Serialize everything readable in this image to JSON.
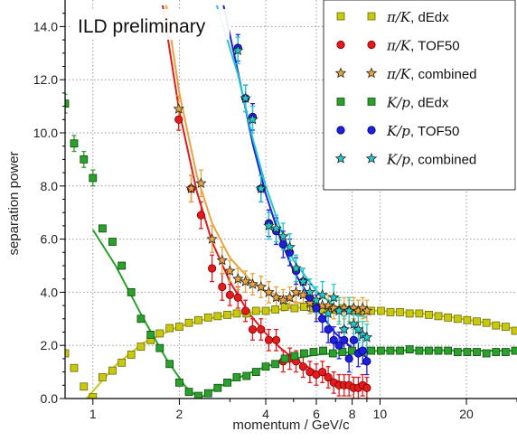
{
  "chart_data": {
    "type": "scatter",
    "title": "",
    "banner": "ILD preliminary",
    "xlabel": "momentum / GeV/c",
    "ylabel": "separation power",
    "xscale": "log",
    "xlim": [
      0.8,
      30
    ],
    "ylim": [
      0,
      15
    ],
    "grid": true,
    "legend_position": "top-right",
    "x_ticks": [
      1,
      2,
      4,
      6,
      8,
      10,
      20
    ],
    "x_tick_labels": [
      "1",
      "2",
      "4",
      "6",
      "8",
      "10",
      "20"
    ],
    "y_ticks": [
      0,
      2,
      4,
      6,
      8,
      10,
      12,
      14
    ],
    "y_tick_labels": [
      "0.0",
      "2.0",
      "4.0",
      "6.0",
      "8.0",
      "10.0",
      "12.0",
      "14.0"
    ],
    "series": [
      {
        "name": "π/K, dEdx",
        "legend_math": "π/K",
        "legend_suffix": ", dEdx",
        "marker": "square",
        "color": "#c8c810",
        "edge": "#6b6b00",
        "x": [
          0.8,
          0.86,
          0.93,
          1.0,
          1.08,
          1.17,
          1.26,
          1.36,
          1.47,
          1.59,
          1.71,
          1.85,
          2.0,
          2.16,
          2.33,
          2.52,
          2.72,
          2.94,
          3.17,
          3.43,
          3.7,
          4.0,
          4.32,
          4.66,
          5.04,
          5.44,
          5.87,
          6.34,
          6.85,
          7.4,
          7.99,
          8.63,
          9.32,
          10.07,
          10.87,
          11.74,
          12.68,
          13.7,
          14.79,
          15.97,
          17.25,
          18.63,
          20.12,
          21.73,
          23.47,
          25.35,
          27.38,
          29.57
        ],
        "y": [
          1.7,
          1.15,
          0.45,
          0.05,
          0.8,
          1.05,
          1.35,
          1.65,
          1.95,
          2.2,
          2.45,
          2.65,
          2.7,
          2.85,
          2.95,
          3.05,
          3.1,
          3.15,
          3.2,
          3.2,
          3.3,
          3.3,
          3.35,
          3.45,
          3.4,
          3.45,
          3.4,
          3.35,
          3.35,
          3.4,
          3.35,
          3.3,
          3.3,
          3.3,
          3.25,
          3.25,
          3.2,
          3.2,
          3.15,
          3.1,
          3.05,
          3.0,
          2.95,
          2.9,
          2.85,
          2.75,
          2.7,
          2.55
        ],
        "fit": [
          [
            0.95,
            0.0
          ],
          [
            1.2,
            1.25
          ],
          [
            1.5,
            2.1
          ],
          [
            2.0,
            2.72
          ],
          [
            2.5,
            3.0
          ],
          [
            3.0,
            3.15
          ],
          [
            4.0,
            3.3
          ],
          [
            5.0,
            3.42
          ],
          [
            6.0,
            3.42
          ],
          [
            8.0,
            3.35
          ],
          [
            10.0,
            3.3
          ],
          [
            14.0,
            3.2
          ],
          [
            18.0,
            3.05
          ],
          [
            22.0,
            2.9
          ],
          [
            26.0,
            2.75
          ],
          [
            30.0,
            2.6
          ]
        ]
      },
      {
        "name": "π/K, TOF50",
        "legend_math": "π/K",
        "legend_suffix": ", TOF50",
        "marker": "circle",
        "color": "#e41a1c",
        "edge": "#7a0000",
        "x": [
          1.99,
          2.2,
          2.38,
          2.6,
          2.82,
          3.0,
          3.2,
          3.4,
          3.6,
          3.85,
          4.1,
          4.35,
          4.6,
          4.85,
          5.1,
          5.4,
          5.7,
          6.0,
          6.3,
          6.6,
          6.9,
          7.2,
          7.5,
          7.8,
          8.1,
          8.4,
          8.7,
          9.0
        ],
        "y": [
          10.5,
          7.9,
          6.9,
          4.9,
          4.2,
          3.9,
          3.8,
          3.3,
          2.6,
          2.6,
          2.2,
          2.2,
          1.4,
          1.5,
          1.4,
          1.2,
          1.0,
          0.9,
          1.0,
          0.8,
          0.6,
          0.5,
          0.5,
          0.5,
          0.4,
          0.4,
          0.5,
          0.4
        ],
        "err": [
          0.4,
          0.5,
          0.5,
          0.5,
          0.5,
          0.4,
          0.4,
          0.4,
          0.4,
          0.4,
          0.4,
          0.4,
          0.4,
          0.4,
          0.4,
          0.4,
          0.4,
          0.4,
          0.4,
          0.4,
          0.4,
          0.4,
          0.4,
          0.4,
          0.4,
          0.4,
          0.4,
          0.4
        ],
        "fit": [
          [
            1.75,
            14.8
          ],
          [
            2.0,
            10.8
          ],
          [
            2.3,
            7.8
          ],
          [
            2.6,
            5.9
          ],
          [
            3.0,
            4.4
          ],
          [
            3.5,
            3.2
          ],
          [
            4.0,
            2.45
          ],
          [
            4.5,
            1.9
          ],
          [
            5.0,
            1.5
          ],
          [
            6.0,
            1.0
          ],
          [
            7.0,
            0.68
          ],
          [
            8.0,
            0.5
          ],
          [
            9.0,
            0.38
          ]
        ]
      },
      {
        "name": "π/K, combined",
        "legend_math": "π/K",
        "legend_suffix": ", combined",
        "marker": "star",
        "color": "#e8a33d",
        "edge": "#222222",
        "x": [
          1.99,
          2.2,
          2.38,
          2.6,
          2.82,
          3.0,
          3.2,
          3.4,
          3.6,
          3.85,
          4.1,
          4.35,
          4.6,
          4.85,
          5.1,
          5.4,
          5.7,
          6.0,
          6.3,
          6.6,
          6.9,
          7.2,
          7.5,
          7.8,
          8.1,
          8.4,
          8.7,
          9.0
        ],
        "y": [
          10.9,
          7.9,
          8.1,
          6.0,
          5.2,
          4.8,
          4.5,
          4.4,
          4.3,
          4.2,
          4.0,
          3.8,
          3.7,
          3.8,
          4.0,
          3.9,
          3.6,
          3.4,
          3.5,
          3.5,
          3.4,
          3.3,
          3.4,
          3.3,
          3.4,
          3.3,
          3.4,
          3.3
        ],
        "err": [
          0.5,
          0.5,
          0.5,
          0.5,
          0.5,
          0.4,
          0.4,
          0.4,
          0.4,
          0.4,
          0.4,
          0.4,
          0.4,
          0.4,
          0.4,
          0.4,
          0.4,
          0.4,
          0.4,
          0.4,
          0.4,
          0.4,
          0.4,
          0.4,
          0.4,
          0.4,
          0.4,
          0.4
        ],
        "fit": [
          [
            1.8,
            14.8
          ],
          [
            2.0,
            11.5
          ],
          [
            2.3,
            8.4
          ],
          [
            2.6,
            6.6
          ],
          [
            3.0,
            5.3
          ],
          [
            3.5,
            4.5
          ],
          [
            4.0,
            4.05
          ],
          [
            5.0,
            3.65
          ],
          [
            6.0,
            3.45
          ],
          [
            7.0,
            3.37
          ],
          [
            8.0,
            3.32
          ],
          [
            9.0,
            3.3
          ]
        ]
      },
      {
        "name": "K/p, dEdx",
        "legend_math": "K/p",
        "legend_suffix": ", dEdx",
        "marker": "square",
        "color": "#2ca02c",
        "edge": "#0b4d0b",
        "x": [
          0.8,
          0.86,
          0.93,
          1.0,
          1.08,
          1.17,
          1.26,
          1.36,
          1.47,
          1.59,
          1.71,
          1.85,
          2.0,
          2.16,
          2.33,
          2.52,
          2.72,
          2.94,
          3.17,
          3.43,
          3.7,
          4.0,
          4.32,
          4.66,
          5.04,
          5.44,
          5.87,
          6.34,
          6.85,
          7.4,
          7.99,
          8.63,
          9.32,
          10.07,
          10.87,
          11.74,
          12.68,
          13.7,
          14.79,
          15.97,
          17.25,
          18.63,
          20.12,
          21.73,
          23.47,
          25.35,
          27.38,
          29.57
        ],
        "y": [
          11.1,
          9.6,
          9.0,
          8.3,
          6.4,
          5.9,
          5.0,
          4.0,
          3.0,
          2.4,
          1.9,
          1.3,
          0.6,
          0.25,
          0.1,
          0.2,
          0.4,
          0.6,
          0.8,
          0.85,
          1.0,
          1.2,
          1.3,
          1.5,
          1.6,
          1.7,
          1.75,
          1.8,
          1.7,
          1.75,
          1.8,
          1.75,
          1.8,
          1.8,
          1.8,
          1.8,
          1.85,
          1.8,
          1.8,
          1.8,
          1.8,
          1.75,
          1.75,
          1.75,
          1.7,
          1.75,
          1.75,
          1.8
        ],
        "err": [
          0.35,
          0.3,
          0.3,
          0.3,
          0,
          0,
          0,
          0,
          0,
          0,
          0,
          0,
          0,
          0,
          0,
          0,
          0,
          0,
          0,
          0,
          0,
          0,
          0,
          0,
          0,
          0,
          0,
          0,
          0,
          0,
          0,
          0,
          0,
          0,
          0,
          0,
          0,
          0,
          0,
          0,
          0,
          0,
          0,
          0,
          0,
          0,
          0,
          0
        ],
        "fit": [
          [
            1.0,
            6.35
          ],
          [
            1.2,
            5.0
          ],
          [
            1.5,
            3.0
          ],
          [
            1.8,
            1.5
          ],
          [
            2.1,
            0.45
          ],
          [
            2.35,
            0.0
          ],
          [
            2.6,
            0.3
          ],
          [
            3.0,
            0.65
          ],
          [
            3.5,
            0.95
          ],
          [
            4.0,
            1.2
          ],
          [
            5.0,
            1.5
          ],
          [
            6.0,
            1.65
          ],
          [
            8.0,
            1.75
          ],
          [
            10.0,
            1.8
          ],
          [
            15.0,
            1.82
          ],
          [
            20.0,
            1.8
          ],
          [
            30.0,
            1.8
          ]
        ]
      },
      {
        "name": "K/p, TOF50",
        "legend_math": "K/p",
        "legend_suffix": ", TOF50",
        "marker": "circle",
        "color": "#1f1fe0",
        "edge": "#00006b",
        "x": [
          3.2,
          3.4,
          3.6,
          3.85,
          4.1,
          4.35,
          4.6,
          4.85,
          5.1,
          5.4,
          5.7,
          6.0,
          6.3,
          6.6,
          6.9,
          7.2,
          7.5,
          7.8,
          8.1,
          8.4,
          8.7,
          9.0
        ],
        "y": [
          13.2,
          11.3,
          10.6,
          7.9,
          6.6,
          6.3,
          5.8,
          5.5,
          4.8,
          4.4,
          3.8,
          3.4,
          3.0,
          2.6,
          2.2,
          2.0,
          2.2,
          1.5,
          2.2,
          1.7,
          1.8,
          1.4
        ],
        "err": [
          0.5,
          0.5,
          0.5,
          0.5,
          0.5,
          0.5,
          0.5,
          0.5,
          0.5,
          0.5,
          0.5,
          0.5,
          0.5,
          0.5,
          0.5,
          0.5,
          0.5,
          0.5,
          0.5,
          0.5,
          0.5,
          0.5
        ],
        "fit": [
          [
            2.85,
            14.8
          ],
          [
            3.2,
            12.3
          ],
          [
            3.6,
            9.6
          ],
          [
            4.0,
            7.7
          ],
          [
            4.5,
            6.0
          ],
          [
            5.0,
            4.8
          ],
          [
            6.0,
            3.4
          ],
          [
            7.0,
            2.45
          ],
          [
            8.0,
            1.9
          ],
          [
            9.0,
            1.55
          ]
        ]
      },
      {
        "name": "K/p, combined",
        "legend_math": "K/p",
        "legend_suffix": ", combined",
        "marker": "star",
        "color": "#22c9c9",
        "edge": "#222222",
        "x": [
          3.2,
          3.4,
          3.6,
          3.85,
          4.1,
          4.35,
          4.6,
          4.85,
          5.1,
          5.4,
          5.7,
          6.0,
          6.3,
          6.6,
          6.9,
          7.2,
          7.5,
          7.8,
          8.1,
          8.4,
          8.7,
          9.0
        ],
        "y": [
          13.1,
          11.3,
          10.5,
          7.9,
          6.5,
          6.4,
          6.1,
          5.7,
          4.9,
          4.4,
          4.0,
          3.7,
          3.9,
          3.2,
          3.8,
          3.3,
          2.6,
          3.3,
          2.8,
          2.6,
          2.4,
          2.3
        ],
        "err": [
          0.5,
          0.5,
          0.5,
          0.5,
          0.5,
          0.5,
          0.5,
          0.5,
          0.5,
          0.5,
          0.5,
          0.5,
          0.5,
          0.5,
          0.5,
          0.5,
          0.5,
          0.5,
          0.5,
          0.5,
          0.5,
          0.5
        ],
        "fit": [
          [
            2.7,
            14.8
          ],
          [
            3.2,
            12.2
          ],
          [
            3.6,
            9.8
          ],
          [
            4.0,
            8.0
          ],
          [
            4.5,
            6.4
          ],
          [
            5.0,
            5.2
          ],
          [
            6.0,
            4.05
          ],
          [
            7.0,
            3.45
          ],
          [
            8.0,
            3.2
          ],
          [
            9.0,
            3.05
          ]
        ]
      }
    ]
  }
}
